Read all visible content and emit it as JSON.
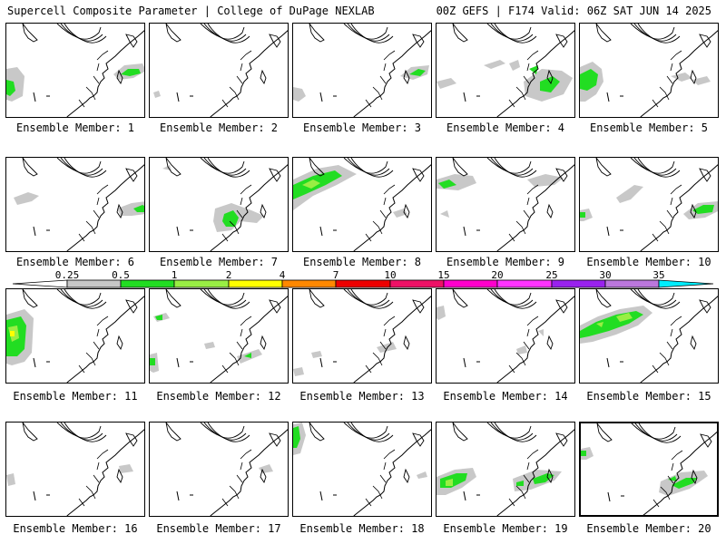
{
  "header": {
    "title_left": "Supercell Composite Parameter | College of DuPage NEXLAB",
    "title_right": "00Z GEFS | F174 Valid: 06Z SAT JUN 14 2025"
  },
  "colors": {
    "gray": "#c8c8c8",
    "green": "#22dd22",
    "light_green": "#99ee44",
    "yellow": "#ffff00",
    "orange": "#ff8800",
    "red": "#ee0000",
    "crimson": "#ee1166",
    "magenta": "#ff00cc",
    "pink_magenta": "#ff33ff",
    "purple": "#9922ee",
    "lavender": "#bb77dd",
    "cyan": "#00eeff"
  },
  "colorbar": {
    "ticks": [
      "0.25",
      "0.5",
      "1",
      "2",
      "4",
      "7",
      "10",
      "15",
      "20",
      "25",
      "30",
      "35"
    ],
    "segment_colors": [
      "#c8c8c8",
      "#22dd22",
      "#99ee44",
      "#ffff00",
      "#ff8800",
      "#ee0000",
      "#ee1166",
      "#ff00cc",
      "#ff33ff",
      "#9922ee",
      "#bb77dd",
      "#00eeff"
    ]
  },
  "panels": [
    {
      "label": "Ensemble Member: 1"
    },
    {
      "label": "Ensemble Member: 2"
    },
    {
      "label": "Ensemble Member: 3"
    },
    {
      "label": "Ensemble Member: 4"
    },
    {
      "label": "Ensemble Member: 5"
    },
    {
      "label": "Ensemble Member: 6"
    },
    {
      "label": "Ensemble Member: 7"
    },
    {
      "label": "Ensemble Member: 8"
    },
    {
      "label": "Ensemble Member: 9"
    },
    {
      "label": "Ensemble Member: 10"
    },
    {
      "label": "Ensemble Member: 11"
    },
    {
      "label": "Ensemble Member: 12"
    },
    {
      "label": "Ensemble Member: 13"
    },
    {
      "label": "Ensemble Member: 14"
    },
    {
      "label": "Ensemble Member: 15"
    },
    {
      "label": "Ensemble Member: 16"
    },
    {
      "label": "Ensemble Member: 17"
    },
    {
      "label": "Ensemble Member: 18"
    },
    {
      "label": "Ensemble Member: 19"
    },
    {
      "label": "Ensemble Member: 20",
      "selected": true
    }
  ]
}
